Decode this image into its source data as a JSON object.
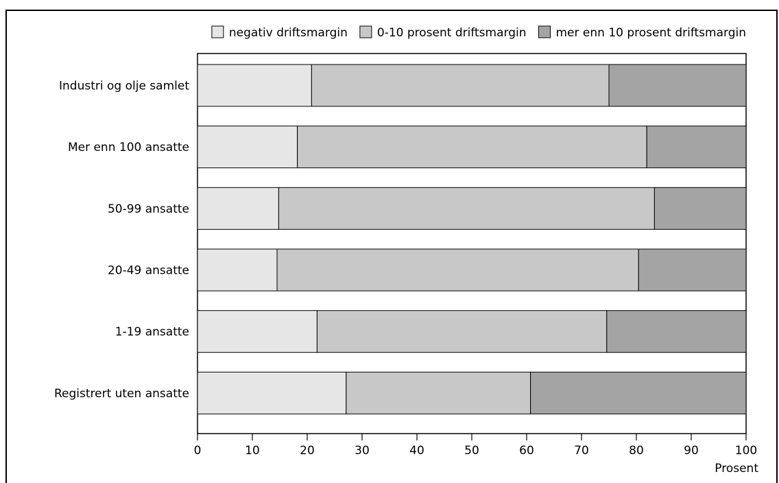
{
  "chart_data": {
    "type": "bar",
    "orientation": "horizontal",
    "stacked": true,
    "title": "",
    "xlabel": "Prosent",
    "ylabel": "",
    "xlim": [
      0,
      100
    ],
    "x_ticks": [
      0,
      10,
      20,
      30,
      40,
      50,
      60,
      70,
      80,
      90,
      100
    ],
    "grid": false,
    "legend_position": "top",
    "categories": [
      "Industri og olje samlet",
      "Mer enn 100 ansatte",
      "50-99 ansatte",
      "20-49 ansatte",
      "1-19 ansatte",
      "Registrert uten ansatte"
    ],
    "series": [
      {
        "name": "negativ driftsmargin",
        "color": "#e6e6e6",
        "values": [
          20.8,
          18.2,
          14.8,
          14.5,
          21.8,
          27.1
        ]
      },
      {
        "name": "0-10 prosent driftsmargin",
        "color": "#c8c8c8",
        "values": [
          54.2,
          63.7,
          68.5,
          65.9,
          52.8,
          33.6
        ]
      },
      {
        "name": "mer enn 10 prosent driftsmargin",
        "color": "#a4a4a4",
        "values": [
          25.0,
          18.1,
          16.7,
          19.6,
          25.4,
          39.3
        ]
      }
    ]
  }
}
